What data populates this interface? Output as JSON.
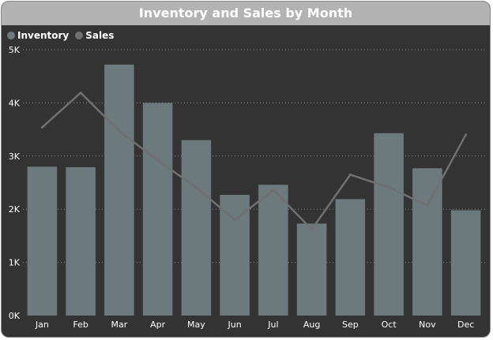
{
  "chart_data": {
    "type": "bar",
    "title": "Inventory and Sales by Month",
    "categories": [
      "Jan",
      "Feb",
      "Mar",
      "Apr",
      "May",
      "Jun",
      "Jul",
      "Aug",
      "Sep",
      "Oct",
      "Nov",
      "Dec"
    ],
    "series": [
      {
        "name": "Inventory",
        "type": "bar",
        "color": "#6c7a7d",
        "values": [
          2800,
          2790,
          4720,
          4000,
          3300,
          2270,
          2460,
          1730,
          2190,
          3430,
          2770,
          1980
        ]
      },
      {
        "name": "Sales",
        "type": "line",
        "color": "#707070",
        "values": [
          3540,
          4190,
          3470,
          2920,
          2410,
          1800,
          2360,
          1620,
          2650,
          2410,
          2070,
          3400
        ]
      }
    ],
    "ylim": [
      0,
      5000
    ],
    "yticks": [
      0,
      1000,
      2000,
      3000,
      4000,
      5000
    ],
    "ytick_labels": [
      "0K",
      "1K",
      "2K",
      "3K",
      "4K",
      "5K"
    ],
    "grid": true,
    "legend_position": "top-left"
  },
  "colors": {
    "background": "#333333",
    "title_bar": "#b3b3b3",
    "inventory": "#6c7a7d",
    "sales": "#707070"
  }
}
